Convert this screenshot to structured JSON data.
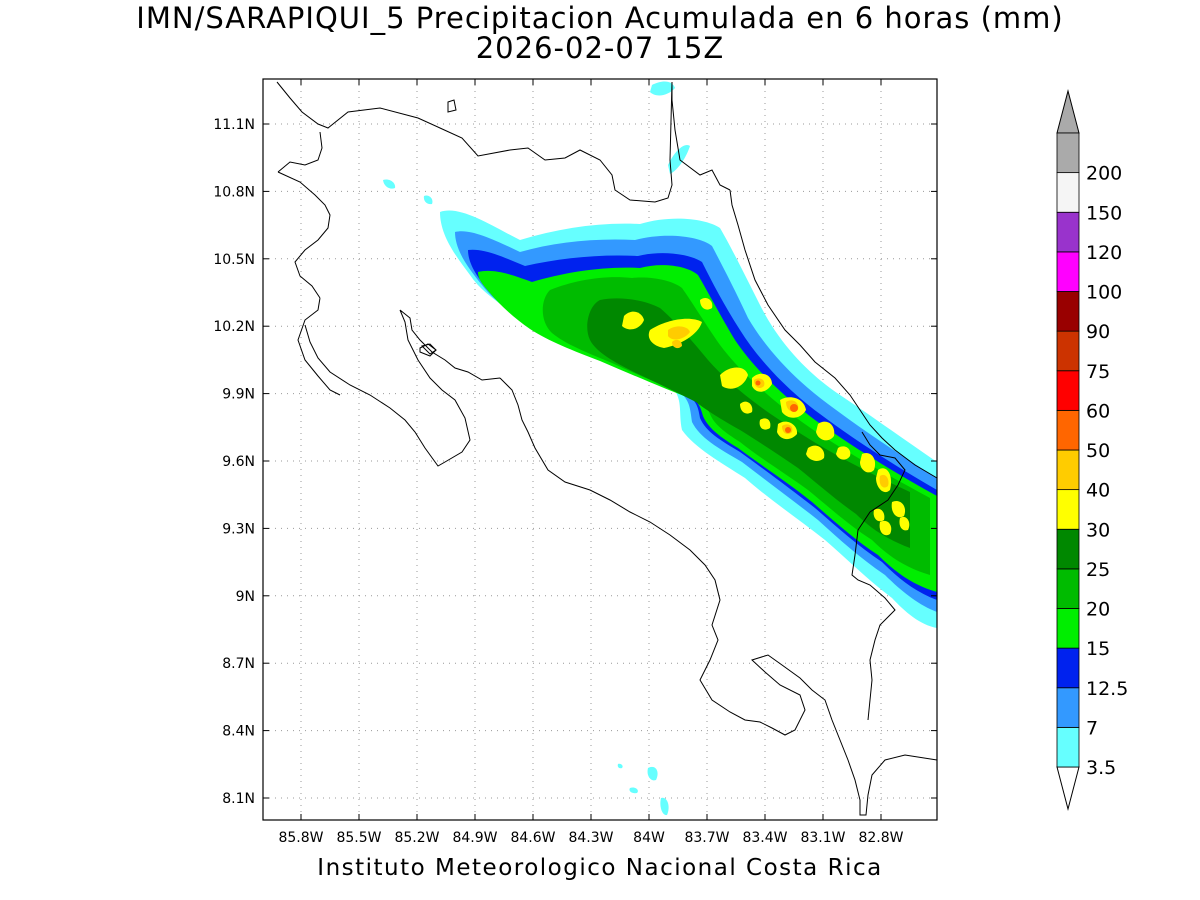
{
  "title": {
    "line1": "IMN/SARAPIQUI_5 Precipitacion Acumulada en 6 horas (mm)",
    "line2": "2026-02-07 15Z"
  },
  "footer": "Instituto Meteorologico Nacional Costa Rica",
  "map": {
    "lon_range": [
      -86.05,
      -83.05
    ],
    "lat_range": [
      8.0,
      11.3
    ],
    "lat_ticks": [
      "11.1N",
      "10.8N",
      "10.5N",
      "10.2N",
      "9.9N",
      "9.6N",
      "9.3N",
      "9N",
      "8.7N",
      "8.4N",
      "8.1N"
    ],
    "lon_ticks": [
      "85.8W",
      "85.5W",
      "85.2W",
      "84.9W",
      "84.6W",
      "84.3W",
      "84W",
      "83.7W",
      "83.4W",
      "83.1W",
      "82.8W"
    ],
    "grid": "dotted",
    "variable": "6-hour accumulated precipitation (mm)"
  },
  "legend": {
    "units": "mm",
    "levels": [
      "3.5",
      "7",
      "12.5",
      "15",
      "20",
      "25",
      "30",
      "40",
      "50",
      "60",
      "75",
      "90",
      "100",
      "120",
      "150",
      "200"
    ],
    "colors": [
      "#66ffff",
      "#3399ff",
      "#0022ee",
      "#00ee00",
      "#00bb00",
      "#008800",
      "#ffff00",
      "#ffcc00",
      "#ff6600",
      "#ff0000",
      "#cc3300",
      "#990000",
      "#ff00ff",
      "#9933cc",
      "#f5f5f5",
      "#aaaaaa"
    ],
    "extend": "both"
  }
}
